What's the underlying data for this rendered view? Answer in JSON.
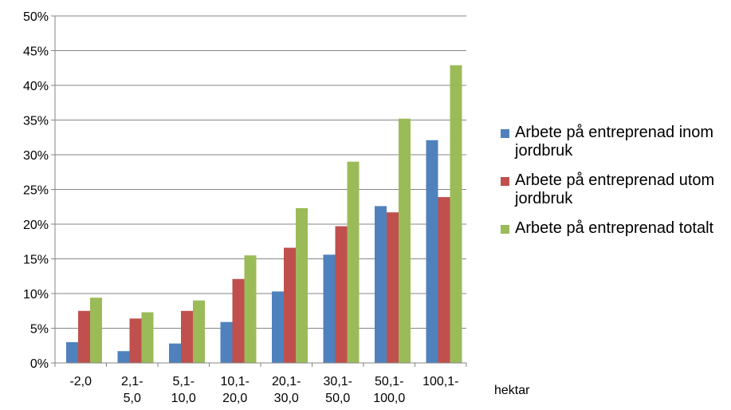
{
  "chart_data": {
    "type": "bar",
    "categories": [
      "-2,0",
      "2,1-\n5,0",
      "5,1-\n10,0",
      "10,1-\n20,0",
      "20,1-\n30,0",
      "30,1-\n50,0",
      "50,1-\n100,0",
      "100,1-"
    ],
    "series": [
      {
        "name": "Arbete på entreprenad inom jordbruk",
        "color": "#4F81BD",
        "values": [
          3.0,
          1.7,
          2.8,
          5.9,
          10.3,
          15.6,
          22.6,
          32.1
        ]
      },
      {
        "name": "Arbete på entreprenad utom jordbruk",
        "color": "#C0504D",
        "values": [
          7.5,
          6.4,
          7.5,
          12.1,
          16.6,
          19.7,
          21.7,
          23.9
        ]
      },
      {
        "name": "Arbete på entreprenad totalt",
        "color": "#9BBB59",
        "values": [
          9.4,
          7.3,
          9.0,
          15.5,
          22.3,
          29.0,
          35.2,
          42.9
        ]
      }
    ],
    "yticks": [
      "0%",
      "5%",
      "10%",
      "15%",
      "20%",
      "25%",
      "30%",
      "35%",
      "40%",
      "45%",
      "50%"
    ],
    "ylim": [
      0,
      50
    ],
    "xlabel": "hektar",
    "ylabel": "",
    "legend_position": "right",
    "grid": "horizontal"
  }
}
